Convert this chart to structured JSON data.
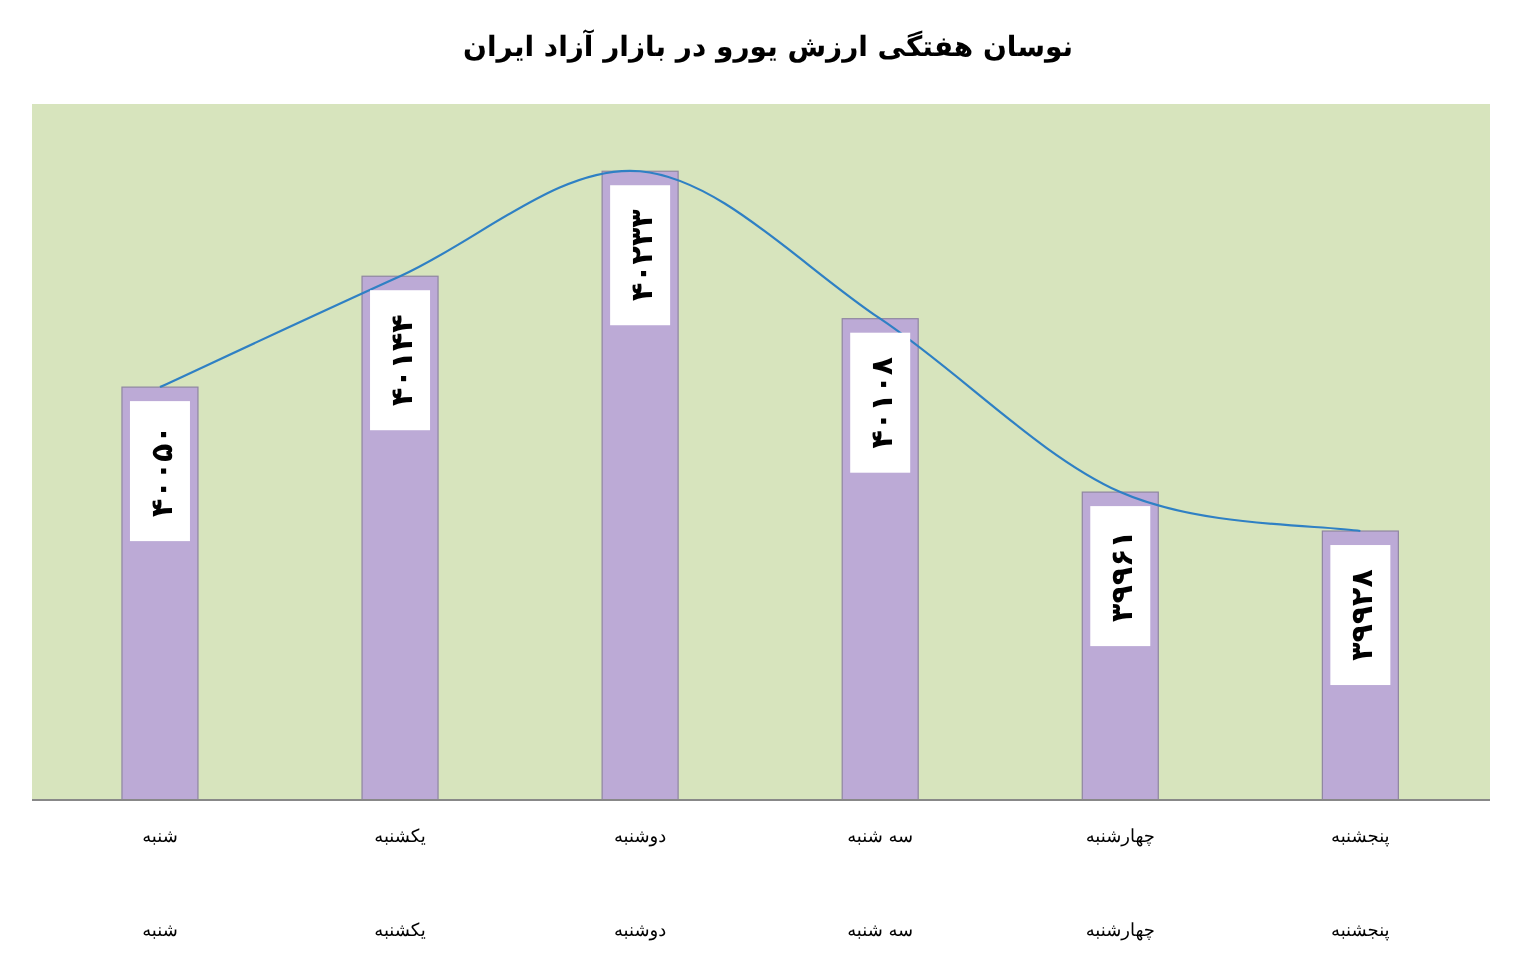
{
  "chart_data": {
    "type": "bar",
    "title": "نوسان هفتگی ارزش  یورو در بازار آزاد ایران",
    "categories": [
      "شنبه",
      "یکشنبه",
      "دوشنبه",
      "سه شنبه",
      "چهارشنبه",
      "پنجشنبه"
    ],
    "series": [
      {
        "color": "#bcaad6",
        "values": [
          40050,
          40144,
          40233,
          40108,
          39961,
          39928
        ],
        "value_labels": [
          "۴۰۰۵۰",
          "۴۰۱۴۴",
          "۴۰۲۳۳",
          "۴۰۱۰۸",
          "۳۹۹۶۱",
          "۳۹۹۲۸"
        ]
      },
      {
        "type": "line",
        "color": "#2f80c4",
        "values": [
          40050,
          40144,
          40233,
          40108,
          39961,
          39928
        ]
      }
    ],
    "ylim": [
      39700,
      40290
    ],
    "tick_labels": "x"
  }
}
